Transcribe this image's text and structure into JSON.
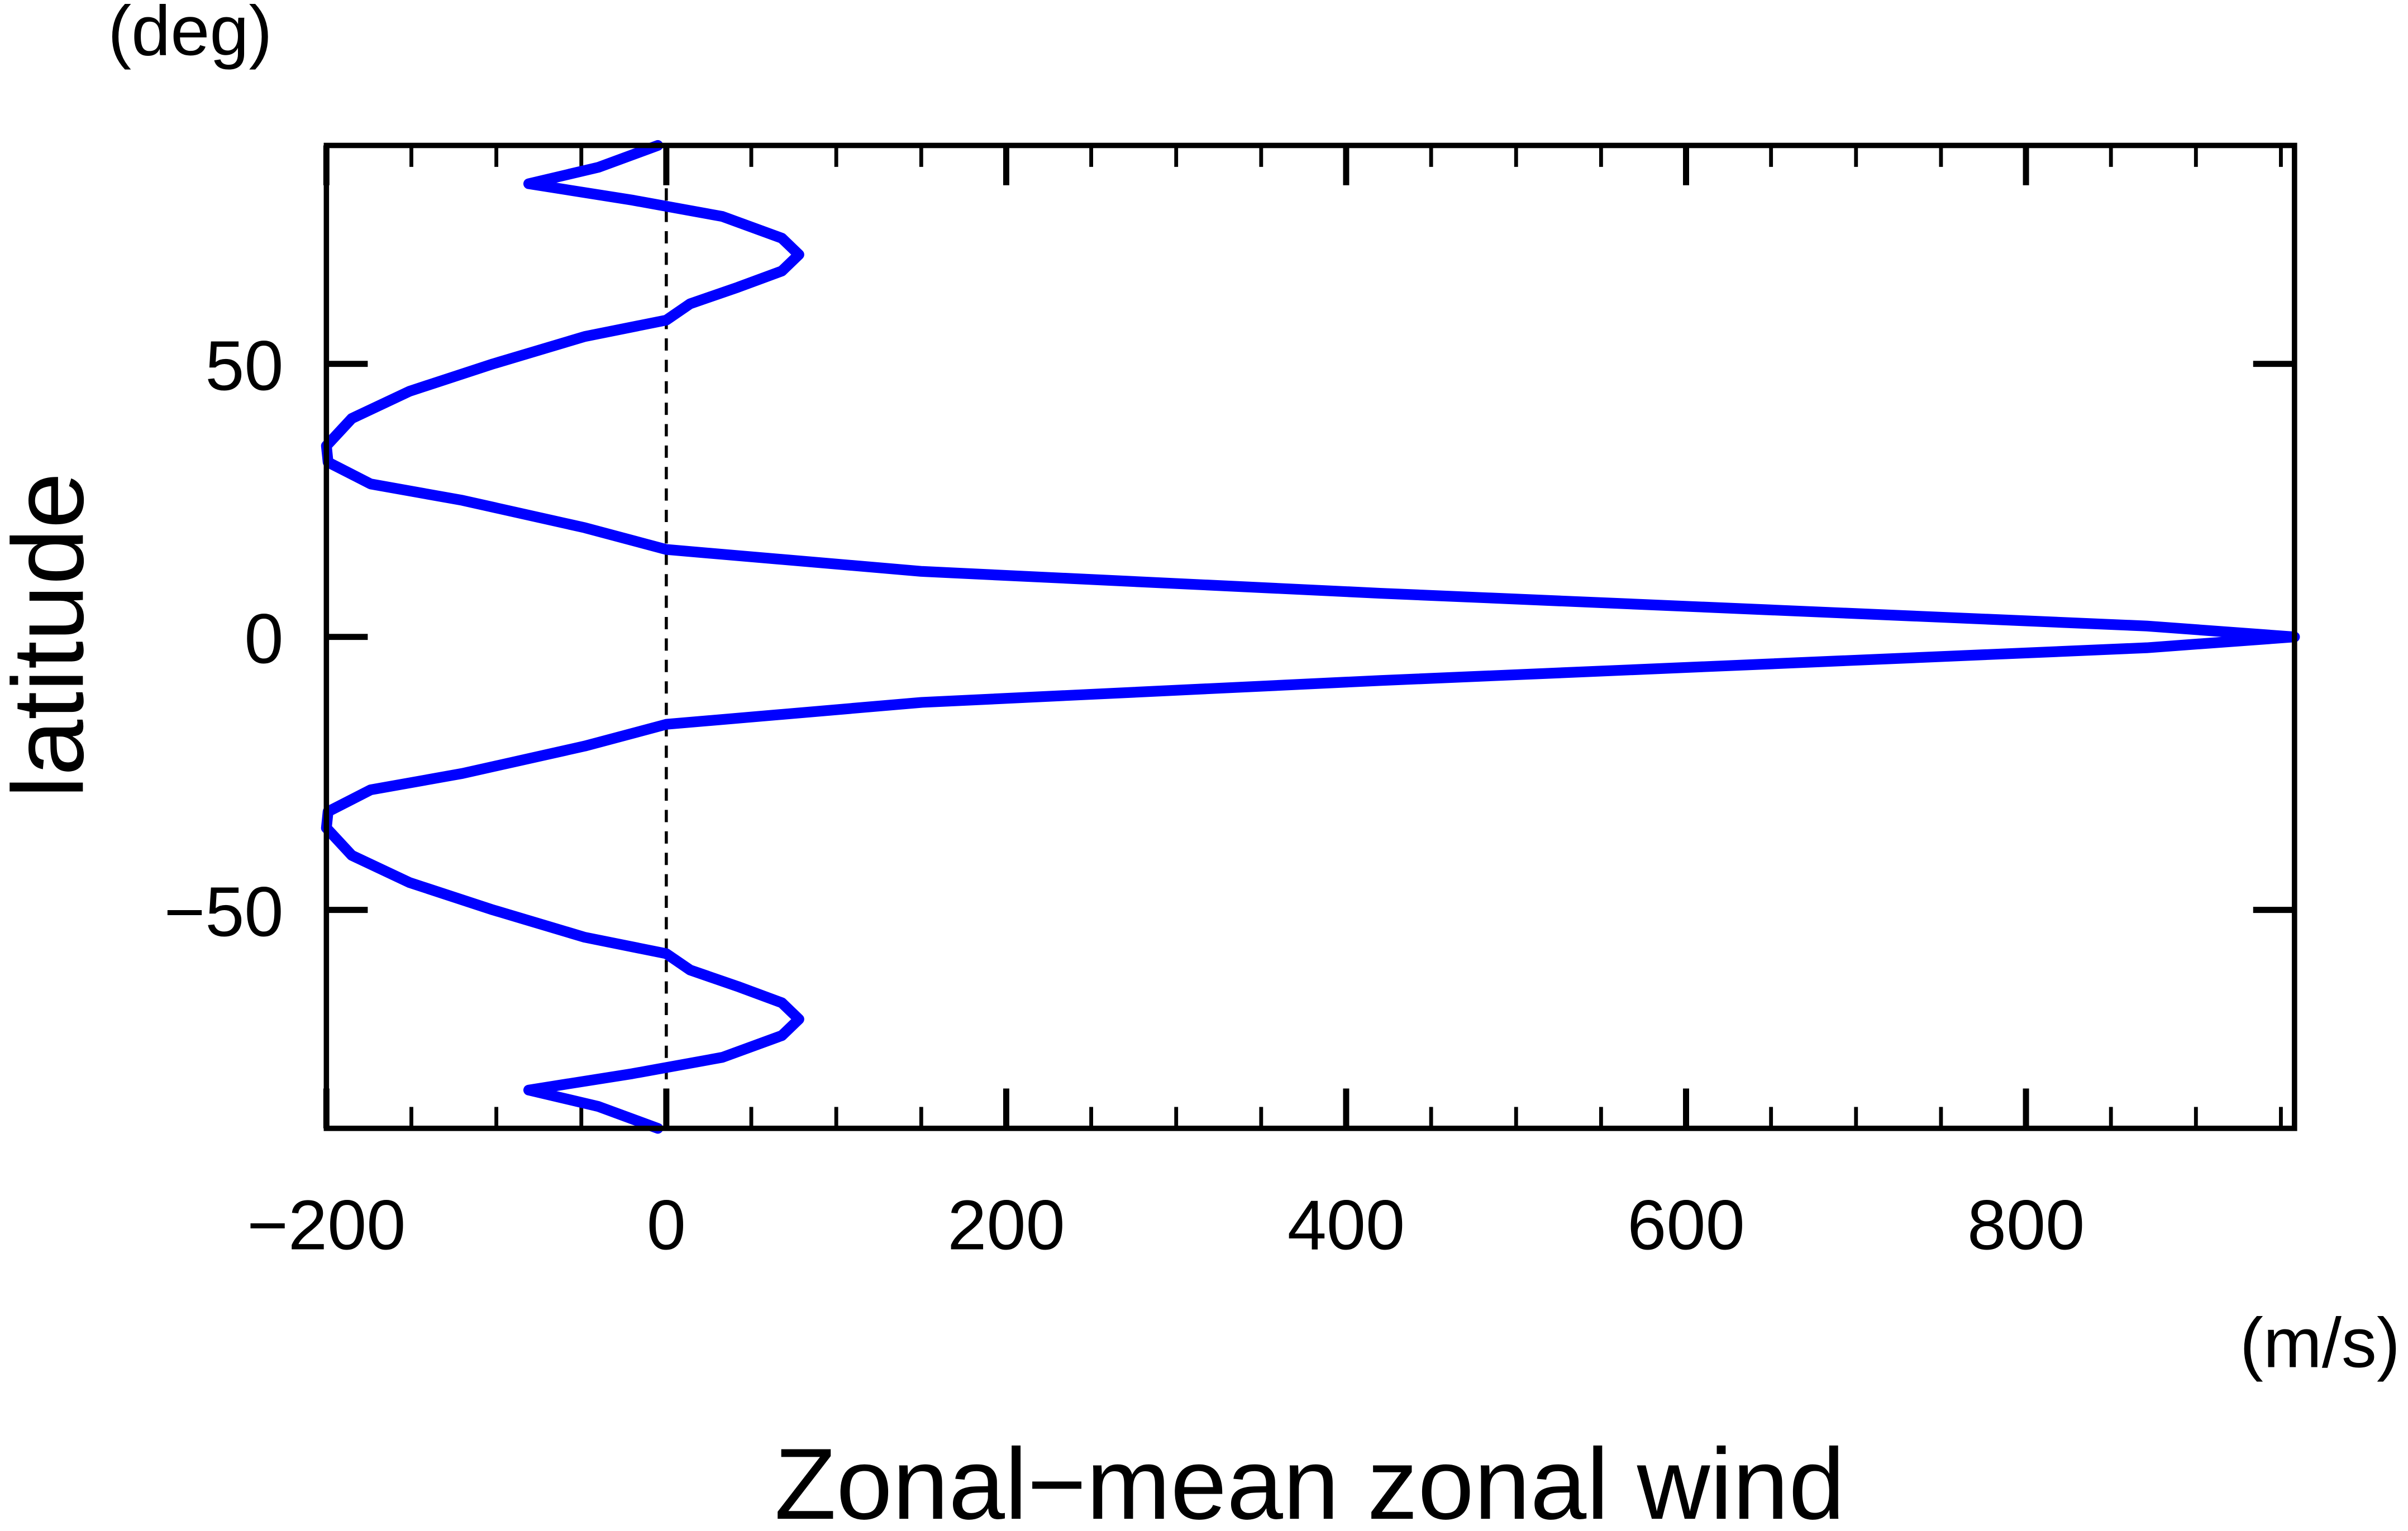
{
  "chart_data": {
    "type": "line",
    "y_unit": "(deg)",
    "y_label": "latitude",
    "x_unit": "(m/s)",
    "x_label": "Zonal−mean zonal wind",
    "series": [
      {
        "color": "#0000ff",
        "y": [
          90,
          86,
          83,
          80,
          77,
          73,
          70,
          67,
          64,
          61,
          58,
          55,
          50,
          45,
          40,
          35,
          32,
          28,
          25,
          20,
          16,
          12,
          8,
          5,
          2,
          0,
          -2,
          -5,
          -8,
          -12,
          -16,
          -20,
          -25,
          -28,
          -32,
          -35,
          -40,
          -45,
          -50,
          -55,
          -58,
          -61,
          -64,
          -67,
          -70,
          -73,
          -77,
          -80,
          -83,
          -86,
          -90
        ],
        "x": [
          -5,
          -40,
          -81,
          -20,
          33,
          68,
          78,
          68,
          42,
          14,
          0,
          -48,
          -102,
          -151,
          -185,
          -200,
          -199,
          -174,
          -120,
          -48,
          0,
          150,
          420,
          646,
          871,
          958,
          871,
          646,
          420,
          150,
          0,
          -48,
          -120,
          -174,
          -199,
          -200,
          -185,
          -151,
          -102,
          -48,
          0,
          14,
          42,
          68,
          78,
          68,
          33,
          -20,
          -81,
          -40,
          -5
        ]
      }
    ],
    "xlim": [
      -200,
      958
    ],
    "ylim": [
      -90,
      90
    ],
    "xticks": [
      {
        "value": -200,
        "label": "−200"
      },
      0,
      200,
      400,
      600,
      800
    ],
    "xticks_minor": [
      -150,
      -100,
      -50,
      50,
      100,
      150,
      250,
      300,
      350,
      450,
      500,
      550,
      650,
      700,
      750,
      850,
      900,
      950
    ],
    "yticks": [
      {
        "value": -50,
        "label": "−50"
      },
      0,
      50
    ],
    "vline": 0
  }
}
